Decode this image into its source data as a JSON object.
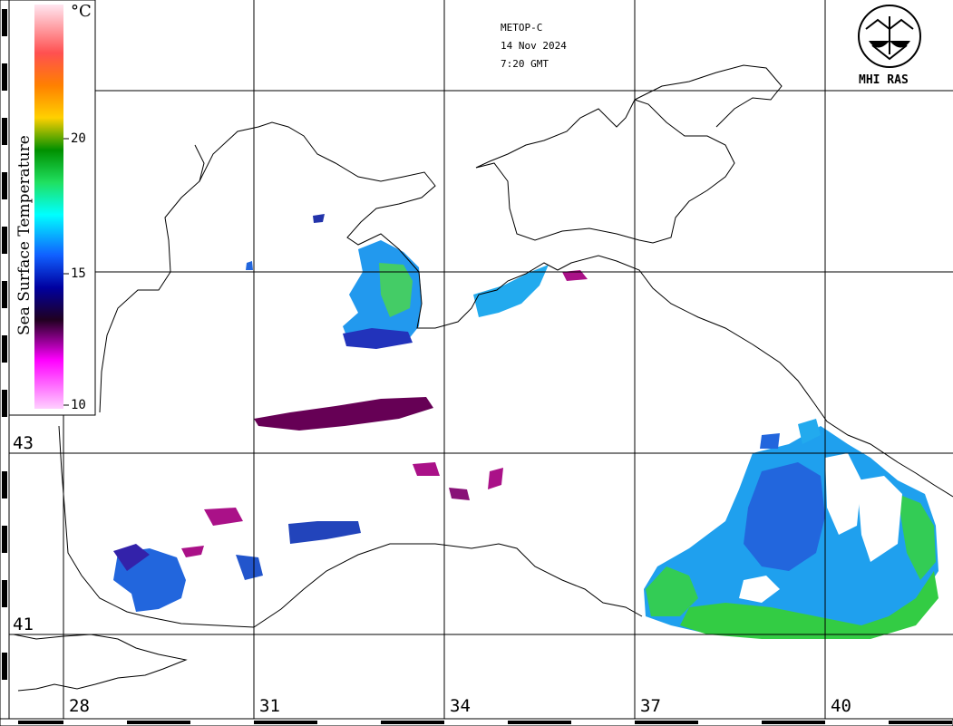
{
  "header": {
    "satellite": "METOP-C",
    "date": "14 Nov 2024",
    "time": "7:20 GMT"
  },
  "logo": {
    "text": "MHI RAS",
    "icon": "wave-logo-icon"
  },
  "legend": {
    "title": "Sea Surface Temperature",
    "unit": "°C",
    "ticks": [
      "20",
      "15",
      "10"
    ],
    "colors": [
      "#ffe6f0",
      "#ff3000",
      "#ffd000",
      "#00a000",
      "#00ffff",
      "#0000ff",
      "#200030",
      "#ff00ff",
      "#ffd0ff"
    ]
  },
  "axes": {
    "latitudes": [
      "43",
      "41"
    ],
    "longitudes": [
      "28",
      "31",
      "34",
      "37",
      "40"
    ]
  },
  "colors": {
    "warm_sst": "#33cc44",
    "mid_sst": "#22aaee",
    "cool_sst": "#2233cc",
    "cold_sst": "#aa0088"
  }
}
